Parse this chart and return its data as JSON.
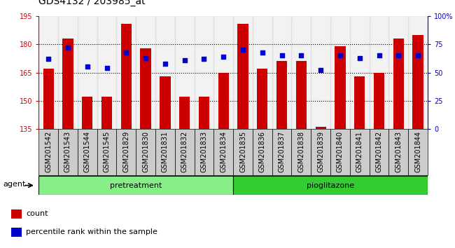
{
  "title": "GDS4132 / 203985_at",
  "samples": [
    "GSM201542",
    "GSM201543",
    "GSM201544",
    "GSM201545",
    "GSM201829",
    "GSM201830",
    "GSM201831",
    "GSM201832",
    "GSM201833",
    "GSM201834",
    "GSM201835",
    "GSM201836",
    "GSM201837",
    "GSM201838",
    "GSM201839",
    "GSM201840",
    "GSM201841",
    "GSM201842",
    "GSM201843",
    "GSM201844"
  ],
  "count_values": [
    167,
    183,
    152,
    152,
    191,
    178,
    163,
    152,
    152,
    165,
    191,
    167,
    171,
    171,
    136,
    179,
    163,
    165,
    183,
    185
  ],
  "percentile_values": [
    62,
    72,
    55,
    54,
    68,
    63,
    58,
    61,
    62,
    64,
    70,
    68,
    65,
    65,
    52,
    65,
    63,
    65,
    65,
    65
  ],
  "pretreatment_count": 10,
  "pioglitazone_count": 10,
  "ymin": 135,
  "ymax": 195,
  "yticks": [
    135,
    150,
    165,
    180,
    195
  ],
  "grid_lines": [
    150,
    165,
    180
  ],
  "pct_yticks": [
    0,
    25,
    50,
    75,
    100
  ],
  "bar_color": "#cc0000",
  "dot_color": "#0000cc",
  "pretreatment_color": "#88ee88",
  "pioglitazone_color": "#33cc33",
  "xbg_color": "#cccccc",
  "agent_label": "agent",
  "pretreatment_label": "pretreatment",
  "pioglitazone_label": "pioglitazone",
  "legend_count": "count",
  "legend_pct": "percentile rank within the sample",
  "title_fontsize": 10,
  "tick_fontsize": 7,
  "label_fontsize": 8,
  "band_label_fontsize": 8
}
